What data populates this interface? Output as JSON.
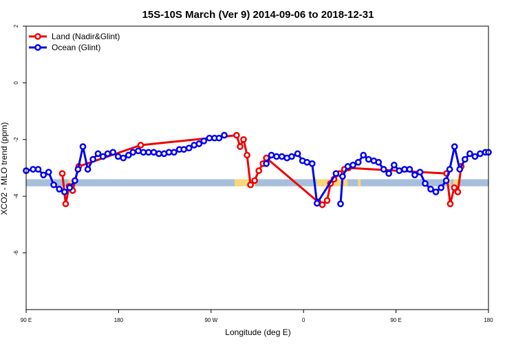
{
  "chart_data": {
    "type": "line",
    "title": "15S-10S March (Ver 9)   2014-09-06 to 2018-12-31",
    "xlabel": "Longitude (deg E)",
    "ylabel": "XCO2 - MLO trend (ppm)",
    "xlim": [
      90,
      450
    ],
    "ylim": [
      -8,
      2
    ],
    "x_ticks": [
      {
        "value": 90,
        "label": "90 E"
      },
      {
        "value": 162,
        "label": "180"
      },
      {
        "value": 234,
        "label": "90 W"
      },
      {
        "value": 306,
        "label": "0"
      },
      {
        "value": 378,
        "label": "90 E"
      },
      {
        "value": 450,
        "label": "180"
      }
    ],
    "y_ticks": [
      {
        "value": 2,
        "label": "2"
      },
      {
        "value": 0,
        "label": "0"
      },
      {
        "value": -2,
        "label": "-2"
      },
      {
        "value": -4,
        "label": "-4"
      },
      {
        "value": -6,
        "label": "-6"
      }
    ],
    "grid": false,
    "legend_position": "top-left",
    "colors": {
      "land": "#ee0000",
      "ocean": "#0000ee",
      "band_ocean": "#a8bfdc",
      "band_land": "#f8d77a"
    },
    "band": {
      "ymin": -3.65,
      "ymax": -3.4
    },
    "land_band_ranges": [
      [
        122.9,
        126.6
      ],
      [
        252.3,
        268.4
      ],
      [
        316.2,
        340.3
      ],
      [
        348.3,
        350.5
      ],
      [
        418.5,
        420.7
      ],
      [
        422.7,
        426.3
      ]
    ],
    "series": [
      {
        "name": "Land (Nadir&Glint)",
        "color": "#ee0000",
        "points": [
          [
            118.1,
            -3.2
          ],
          [
            120.8,
            -4.27
          ],
          [
            123.5,
            -3.65
          ],
          [
            126.2,
            -3.8
          ],
          [
            131.0,
            -2.95
          ],
          [
            179.2,
            -2.2
          ],
          [
            253.9,
            -1.85
          ],
          [
            256.6,
            -2.25
          ],
          [
            259.3,
            -2.0
          ],
          [
            262.0,
            -2.55
          ],
          [
            264.7,
            -3.6
          ],
          [
            267.9,
            -3.45
          ],
          [
            271.2,
            -3.1
          ],
          [
            274.4,
            -2.85
          ],
          [
            277.0,
            -2.65
          ],
          [
            317.3,
            -4.2
          ],
          [
            320.6,
            -4.3
          ],
          [
            324.4,
            -4.15
          ],
          [
            327.0,
            -3.55
          ],
          [
            329.7,
            -3.4
          ],
          [
            334.0,
            -3.2
          ],
          [
            337.8,
            -3.05
          ],
          [
            341.0,
            -3.0
          ],
          [
            417.4,
            -3.2
          ],
          [
            420.2,
            -4.27
          ],
          [
            423.4,
            -3.7
          ],
          [
            426.1,
            -3.85
          ],
          [
            428.8,
            -2.95
          ]
        ]
      },
      {
        "name": "Ocean (Glint)",
        "color": "#0000ee",
        "points": [
          [
            90.0,
            -3.1
          ],
          [
            95.4,
            -3.05
          ],
          [
            99.4,
            -3.05
          ],
          [
            103.5,
            -3.25
          ],
          [
            107.5,
            -3.15
          ],
          [
            111.5,
            -3.6
          ],
          [
            115.8,
            -3.75
          ],
          [
            119.9,
            -3.85
          ],
          [
            123.9,
            -3.7
          ],
          [
            128.0,
            -3.45
          ],
          [
            130.4,
            -3.05
          ],
          [
            134.2,
            -2.25
          ],
          [
            138.0,
            -3.05
          ],
          [
            142.0,
            -2.7
          ],
          [
            146.0,
            -2.5
          ],
          [
            149.8,
            -2.6
          ],
          [
            153.5,
            -2.5
          ],
          [
            157.6,
            -2.45
          ],
          [
            161.6,
            -2.6
          ],
          [
            165.7,
            -2.65
          ],
          [
            169.7,
            -2.55
          ],
          [
            173.2,
            -2.45
          ],
          [
            177.3,
            -2.4
          ],
          [
            181.3,
            -2.45
          ],
          [
            185.3,
            -2.45
          ],
          [
            189.4,
            -2.45
          ],
          [
            193.4,
            -2.5
          ],
          [
            197.4,
            -2.5
          ],
          [
            201.2,
            -2.45
          ],
          [
            205.2,
            -2.45
          ],
          [
            209.3,
            -2.35
          ],
          [
            212.8,
            -2.35
          ],
          [
            216.8,
            -2.3
          ],
          [
            220.8,
            -2.2
          ],
          [
            224.6,
            -2.15
          ],
          [
            228.4,
            -2.05
          ],
          [
            232.7,
            -1.95
          ],
          [
            236.7,
            -1.95
          ],
          [
            240.2,
            -1.95
          ],
          [
            244.3,
            -1.85
          ],
          [
            277.0,
            -2.85
          ],
          [
            281.0,
            -2.55
          ],
          [
            285.0,
            -2.6
          ],
          [
            289.1,
            -2.6
          ],
          [
            293.1,
            -2.65
          ],
          [
            296.8,
            -2.6
          ],
          [
            301.4,
            -2.5
          ],
          [
            305.2,
            -2.75
          ],
          [
            308.7,
            -2.8
          ],
          [
            312.7,
            -2.85
          ],
          [
            316.5,
            -4.25
          ],
          [
            331.3,
            -3.2
          ],
          [
            334.8,
            -4.27
          ],
          [
            336.4,
            -3.3
          ],
          [
            340.5,
            -2.95
          ],
          [
            344.5,
            -2.9
          ],
          [
            348.6,
            -2.8
          ],
          [
            352.6,
            -2.55
          ],
          [
            356.6,
            -2.7
          ],
          [
            360.7,
            -2.75
          ],
          [
            364.4,
            -2.8
          ],
          [
            368.4,
            -3.05
          ],
          [
            372.4,
            -3.2
          ],
          [
            376.5,
            -2.9
          ],
          [
            380.5,
            -3.1
          ],
          [
            384.6,
            -3.05
          ],
          [
            388.6,
            -3.05
          ],
          [
            392.6,
            -3.25
          ],
          [
            396.7,
            -3.15
          ],
          [
            400.7,
            -3.55
          ],
          [
            405.0,
            -3.75
          ],
          [
            409.0,
            -3.85
          ],
          [
            413.1,
            -3.7
          ],
          [
            417.1,
            -3.45
          ],
          [
            419.8,
            -3.05
          ],
          [
            423.6,
            -2.25
          ],
          [
            427.6,
            -3.05
          ],
          [
            431.7,
            -2.7
          ],
          [
            435.5,
            -2.5
          ],
          [
            439.5,
            -2.6
          ],
          [
            443.5,
            -2.5
          ],
          [
            447.6,
            -2.45
          ],
          [
            450.0,
            -2.45
          ]
        ]
      }
    ],
    "ocean_breaks_after_index": [
      39,
      51
    ]
  }
}
